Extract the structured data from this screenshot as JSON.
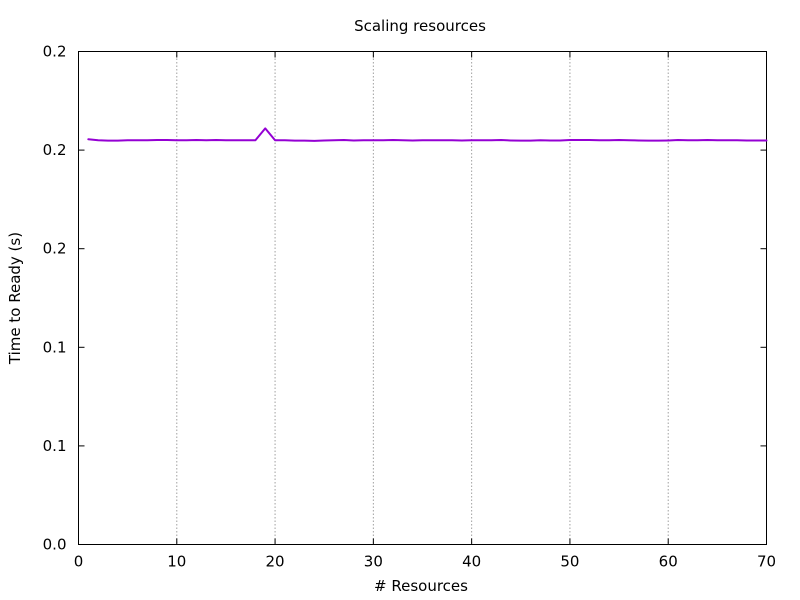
{
  "chart_data": {
    "type": "line",
    "title": "Scaling resources",
    "xlabel": "# Resources",
    "ylabel": "Time to Ready (s)",
    "xlim": [
      0,
      70
    ],
    "ylim": [
      0,
      0.25
    ],
    "grid": "vertical dotted lines at x ticks",
    "x_ticks": [
      0,
      10,
      20,
      30,
      40,
      50,
      60,
      70
    ],
    "x_tick_labels": [
      "0",
      "10",
      "20",
      "30",
      "40",
      "50",
      "60",
      "70"
    ],
    "y_ticks": [
      0,
      0.05,
      0.1,
      0.15,
      0.2,
      0.25
    ],
    "y_tick_labels": [
      "0.0",
      "0.1",
      "0.1",
      "0.2",
      "0.2",
      "0.2"
    ],
    "series": [
      {
        "color": "#9400d3",
        "x": [
          1,
          2,
          3,
          4,
          5,
          6,
          7,
          8,
          9,
          10,
          11,
          12,
          13,
          14,
          15,
          16,
          17,
          18,
          19,
          20,
          21,
          22,
          23,
          24,
          25,
          26,
          27,
          28,
          29,
          30,
          31,
          32,
          33,
          34,
          35,
          36,
          37,
          38,
          39,
          40,
          41,
          42,
          43,
          44,
          45,
          46,
          47,
          48,
          49,
          50,
          51,
          52,
          53,
          54,
          55,
          56,
          57,
          58,
          59,
          60,
          61,
          62,
          63,
          64,
          65,
          66,
          67,
          68,
          69,
          70
        ],
        "y": [
          0.2055,
          0.205,
          0.2048,
          0.2048,
          0.205,
          0.205,
          0.205,
          0.2051,
          0.2051,
          0.205,
          0.205,
          0.2051,
          0.205,
          0.2051,
          0.205,
          0.205,
          0.205,
          0.205,
          0.211,
          0.205,
          0.205,
          0.2048,
          0.2048,
          0.2047,
          0.2049,
          0.205,
          0.2051,
          0.2049,
          0.205,
          0.205,
          0.205,
          0.2051,
          0.205,
          0.2049,
          0.205,
          0.205,
          0.205,
          0.205,
          0.2049,
          0.205,
          0.205,
          0.205,
          0.2051,
          0.2049,
          0.2048,
          0.2048,
          0.205,
          0.2049,
          0.2049,
          0.2051,
          0.2051,
          0.2051,
          0.205,
          0.205,
          0.2051,
          0.205,
          0.2049,
          0.2048,
          0.2048,
          0.2049,
          0.2051,
          0.205,
          0.205,
          0.2051,
          0.205,
          0.205,
          0.205,
          0.2049,
          0.2049,
          0.2049
        ]
      }
    ]
  }
}
